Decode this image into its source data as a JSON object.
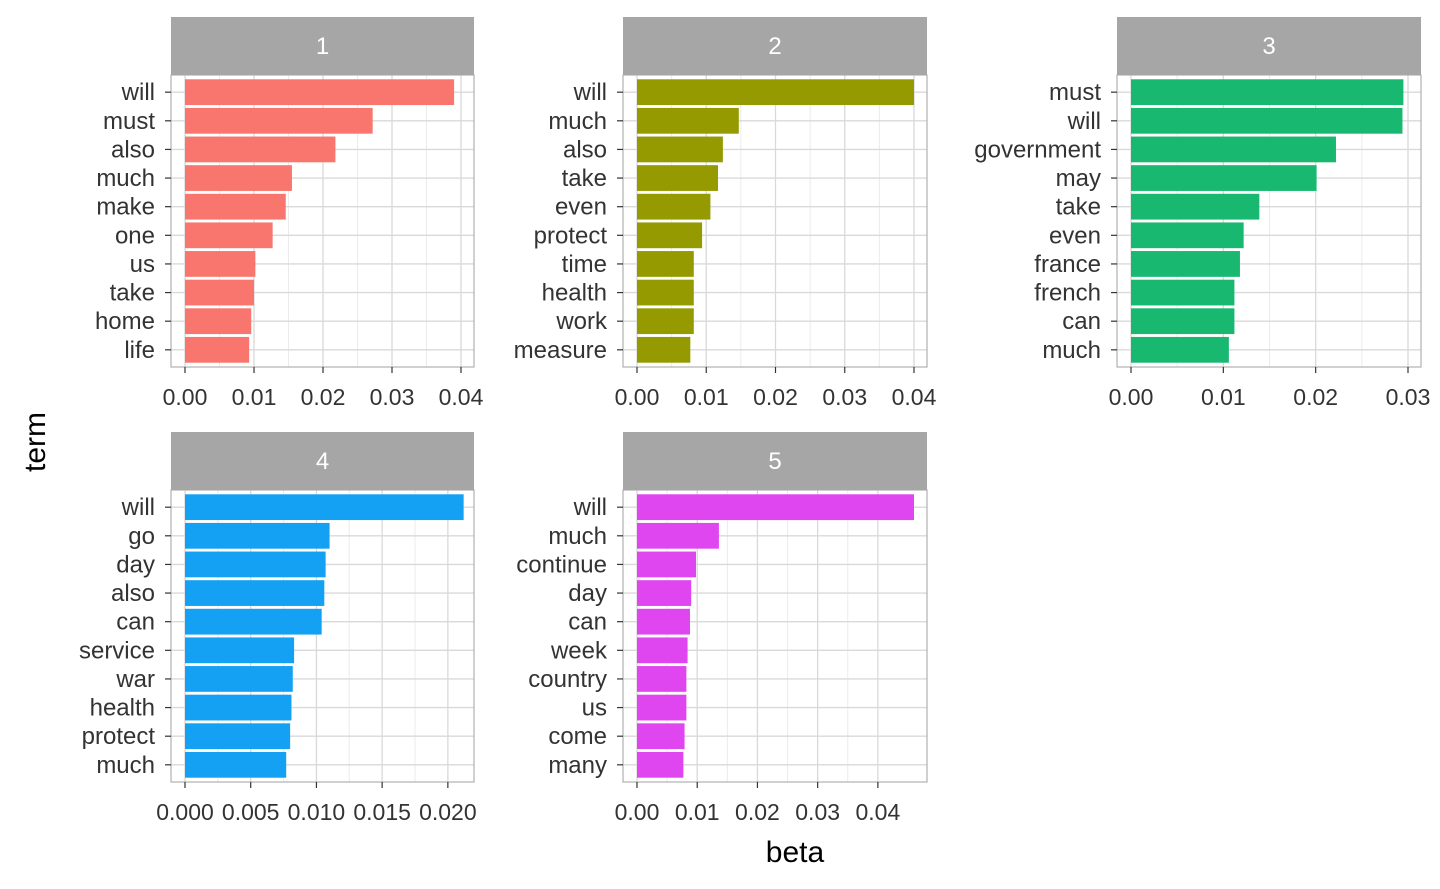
{
  "chart_data": {
    "type": "bar",
    "orientation": "horizontal",
    "facet": true,
    "xlabel": "beta",
    "ylabel": "term",
    "grid": true,
    "colors": {
      "strip": "#a6a6a6",
      "strip_text": "#ffffff",
      "grid": "#d9d9d9",
      "border": "#b0b0b0"
    },
    "panels": [
      {
        "label": "1",
        "color": "#f8766d",
        "xlim": [
          0,
          0.04
        ],
        "ticks": [
          0,
          0.01,
          0.02,
          0.03,
          0.04
        ],
        "tick_labels": [
          "0.00",
          "0.01",
          "0.02",
          "0.03",
          "0.04"
        ],
        "terms": [
          "will",
          "must",
          "also",
          "much",
          "make",
          "one",
          "us",
          "take",
          "home",
          "life"
        ],
        "values": [
          0.039,
          0.0272,
          0.0218,
          0.0155,
          0.0146,
          0.0127,
          0.0102,
          0.01,
          0.0096,
          0.0093
        ]
      },
      {
        "label": "2",
        "color": "#949a00",
        "xlim": [
          0,
          0.04
        ],
        "ticks": [
          0,
          0.01,
          0.02,
          0.03,
          0.04
        ],
        "tick_labels": [
          "0.00",
          "0.01",
          "0.02",
          "0.03",
          "0.04"
        ],
        "terms": [
          "will",
          "much",
          "also",
          "take",
          "even",
          "protect",
          "time",
          "health",
          "work",
          "measure"
        ],
        "values": [
          0.04,
          0.0147,
          0.0124,
          0.0117,
          0.0106,
          0.0094,
          0.0082,
          0.0082,
          0.0082,
          0.0077
        ]
      },
      {
        "label": "3",
        "color": "#19b870",
        "xlim": [
          0,
          0.03
        ],
        "ticks": [
          0,
          0.01,
          0.02,
          0.03
        ],
        "tick_labels": [
          "0.00",
          "0.01",
          "0.02",
          "0.03"
        ],
        "terms": [
          "must",
          "will",
          "government",
          "may",
          "take",
          "even",
          "france",
          "french",
          "can",
          "much"
        ],
        "values": [
          0.0295,
          0.0294,
          0.0222,
          0.0201,
          0.0139,
          0.0122,
          0.0118,
          0.0112,
          0.0112,
          0.0106
        ]
      },
      {
        "label": "4",
        "color": "#14a1f3",
        "xlim": [
          0,
          0.021
        ],
        "ticks": [
          0,
          0.005,
          0.01,
          0.015,
          0.02
        ],
        "tick_labels": [
          "0.000",
          "0.005",
          "0.010",
          "0.015",
          "0.020"
        ],
        "terms": [
          "will",
          "go",
          "day",
          "also",
          "can",
          "service",
          "war",
          "health",
          "protect",
          "much"
        ],
        "values": [
          0.0212,
          0.011,
          0.0107,
          0.0106,
          0.0104,
          0.0083,
          0.0082,
          0.0081,
          0.008,
          0.0077
        ]
      },
      {
        "label": "5",
        "color": "#e046f0",
        "xlim": [
          0,
          0.046
        ],
        "ticks": [
          0,
          0.01,
          0.02,
          0.03,
          0.04
        ],
        "tick_labels": [
          "0.00",
          "0.01",
          "0.02",
          "0.03",
          "0.04"
        ],
        "terms": [
          "will",
          "much",
          "continue",
          "day",
          "can",
          "week",
          "country",
          "us",
          "come",
          "many"
        ],
        "values": [
          0.046,
          0.0136,
          0.0098,
          0.009,
          0.0088,
          0.0084,
          0.0082,
          0.0082,
          0.0079,
          0.0077
        ]
      }
    ]
  }
}
